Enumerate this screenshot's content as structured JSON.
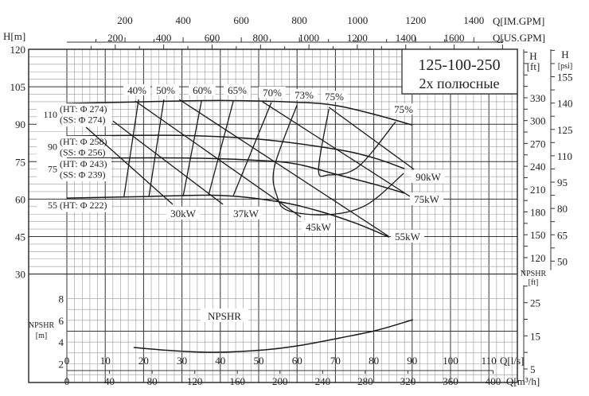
{
  "chart_data": {
    "type": "line",
    "title": "125-100-250",
    "subtitle": "2х полюсные",
    "xlabel": "Q[l/s]",
    "xlabel_m3h": "Q[m³/h]",
    "xlabel_im": "Q[IM.GPM]",
    "xlabel_us": "Q[US.GPM]",
    "ylabel": "H[m]",
    "ylabel_ft": "H",
    "ylabel_ft_unit": "[ft]",
    "ylabel_psi": "H",
    "ylabel_psi_unit": "[psi]",
    "npshr_label": "NPSHR",
    "npshr_unit": "[m]",
    "npshr_ft_label": "NPSHR",
    "npshr_ft_unit": "[ft]",
    "xlim": [
      0,
      110
    ],
    "ylim": [
      30,
      120
    ],
    "grid": true,
    "x_ticks": [
      0,
      10,
      20,
      30,
      40,
      50,
      60,
      70,
      80,
      90,
      100,
      110
    ],
    "x_ticks_m3h": [
      0,
      40,
      80,
      120,
      160,
      200,
      240,
      280,
      320,
      360,
      400
    ],
    "x_ticks_im": [
      200,
      400,
      600,
      800,
      1000,
      1200,
      1400
    ],
    "x_ticks_us": [
      200,
      400,
      600,
      800,
      1000,
      1200,
      1400,
      1600
    ],
    "y_ticks": [
      120,
      105,
      90,
      75,
      60,
      45,
      30
    ],
    "y_ticks_ft": [
      330,
      300,
      270,
      240,
      210,
      180,
      150,
      120
    ],
    "y_ticks_psi": [
      155,
      140,
      125,
      110,
      95,
      80,
      65,
      50
    ],
    "npshr_ticks": [
      8,
      6,
      4,
      2
    ],
    "npshr_ft_ticks": [
      25,
      15,
      5
    ],
    "head_curves": [
      {
        "name": "110",
        "lines": [
          "(HT: Φ 274)",
          "(SS: Φ 274)"
        ],
        "points": [
          [
            0,
            98.3
          ],
          [
            20,
            99
          ],
          [
            40,
            99.5
          ],
          [
            60,
            98.8
          ],
          [
            70,
            97.5
          ],
          [
            80,
            94
          ],
          [
            90,
            89.7
          ]
        ]
      },
      {
        "name": "90",
        "lines": [
          "(HT: Φ 258)",
          "(SS: Φ 256)"
        ],
        "points": [
          [
            0,
            85.3
          ],
          [
            30,
            85.5
          ],
          [
            50,
            84
          ],
          [
            70,
            80
          ],
          [
            80,
            76.5
          ],
          [
            88,
            72.2
          ]
        ]
      },
      {
        "name": "75",
        "lines": [
          "(HT: Φ 243)",
          "(SS: Φ 239)"
        ],
        "points": [
          [
            0,
            76.4
          ],
          [
            30,
            76.5
          ],
          [
            50,
            75.5
          ],
          [
            60,
            74
          ],
          [
            70,
            70
          ],
          [
            80,
            66
          ],
          [
            88,
            62.4
          ]
        ]
      },
      {
        "name": "55",
        "lines": [
          "(HT: Φ 222)"
        ],
        "points": [
          [
            0,
            60.4
          ],
          [
            20,
            61
          ],
          [
            40,
            61.5
          ],
          [
            55,
            59
          ],
          [
            65,
            55.5
          ],
          [
            75,
            50.5
          ],
          [
            84,
            44.8
          ]
        ]
      }
    ],
    "efficiency_curves": [
      {
        "label": "40%",
        "points": [
          [
            18.7,
            99.9
          ],
          [
            14.9,
            61.1
          ]
        ]
      },
      {
        "label": "50%",
        "points": [
          [
            25.3,
            99.9
          ],
          [
            21.4,
            61.1
          ]
        ]
      },
      {
        "label": "60%",
        "points": [
          [
            35.1,
            99.3
          ],
          [
            30.3,
            61.1
          ]
        ]
      },
      {
        "label": "65%",
        "points": [
          [
            43.4,
            99.3
          ],
          [
            36.9,
            61.4
          ]
        ]
      },
      {
        "label": "70%",
        "points": [
          [
            53.3,
            98.7
          ],
          [
            43.4,
            61.4
          ]
        ]
      },
      {
        "label": "73%",
        "points": [
          [
            60,
            97.7
          ],
          [
            54.1,
            72.9
          ],
          [
            54.8,
            61.1
          ],
          [
            57.7,
            55.4
          ],
          [
            68,
            53.8
          ],
          [
            78,
            57.6
          ],
          [
            87.8,
            70.3
          ]
        ]
      },
      {
        "label": "75%",
        "label2": "75%",
        "points": [
          [
            68.3,
            96.1
          ],
          [
            65.6,
            71.9
          ],
          [
            68.3,
            69.7
          ],
          [
            75.9,
            72.9
          ],
          [
            85.7,
            91
          ]
        ]
      }
    ],
    "power_lines": [
      {
        "label": "30kW",
        "points": [
          [
            5.0,
            88.8
          ],
          [
            27.6,
            57.9
          ]
        ]
      },
      {
        "label": "37kW",
        "points": [
          [
            12.0,
            91.3
          ],
          [
            40.7,
            57.9
          ]
        ]
      },
      {
        "label": "45kW",
        "points": [
          [
            17.8,
            99.3
          ],
          [
            61.0,
            52.8
          ]
        ]
      },
      {
        "label": "55kW",
        "points": [
          [
            29.3,
            99.9
          ],
          [
            83.8,
            45.2
          ]
        ]
      },
      {
        "label": "75kW",
        "points": [
          [
            51.0,
            99.0
          ],
          [
            89.4,
            61.1
          ]
        ]
      },
      {
        "label": "90kW",
        "points": [
          [
            68.3,
            96.8
          ],
          [
            90.5,
            71.9
          ]
        ]
      }
    ],
    "npshr_curve": [
      [
        17.4,
        3.5
      ],
      [
        28,
        3.2
      ],
      [
        38.6,
        3.06
      ],
      [
        51.5,
        3.28
      ],
      [
        61,
        3.7
      ],
      [
        71.2,
        4.38
      ],
      [
        81,
        5.1
      ],
      [
        90.2,
        6.06
      ]
    ]
  }
}
